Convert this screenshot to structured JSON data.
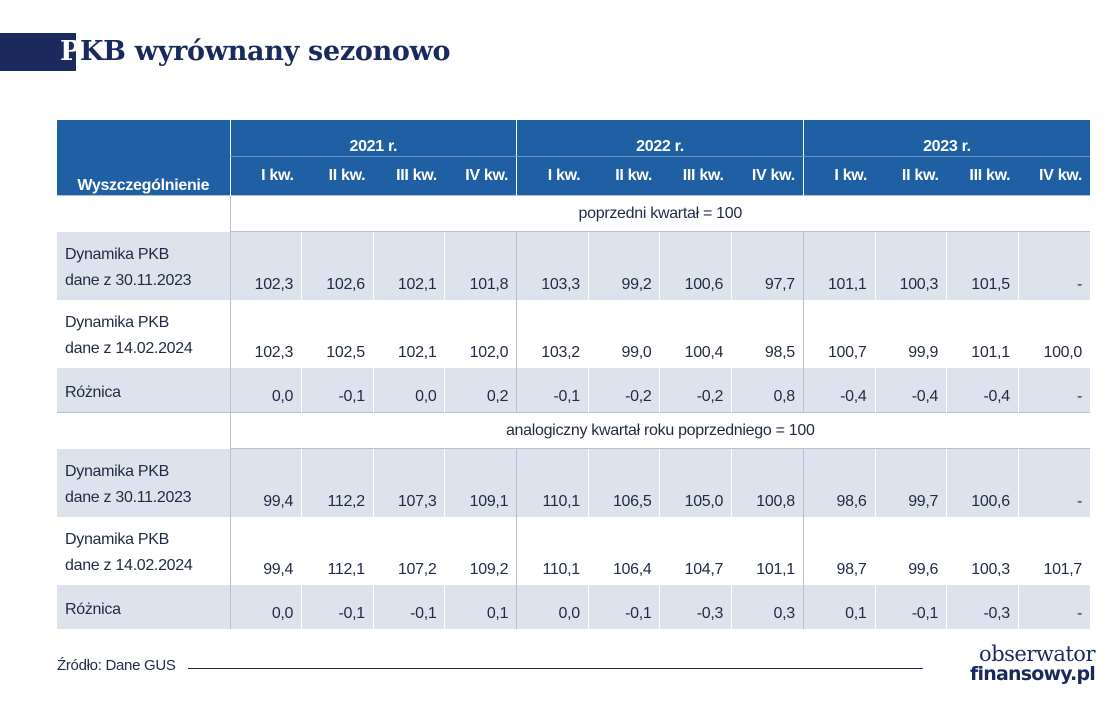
{
  "title": {
    "first_letter": "P",
    "rest": "KB wyrównany sezonowo"
  },
  "chart_data": {
    "type": "table",
    "header_label": "Wyszczególnienie",
    "years": [
      "2021 r.",
      "2022 r.",
      "2023 r."
    ],
    "quarters": [
      "I kw.",
      "II kw.",
      "III kw.",
      "IV kw.",
      "I kw.",
      "II kw.",
      "III kw.",
      "IV kw.",
      "I kw.",
      "II kw.",
      "III kw.",
      "IV kw."
    ],
    "sections": [
      {
        "label": "poprzedni kwartał = 100",
        "rows": [
          {
            "label_line1": "Dynamika PKB",
            "label_line2": "dane z 30.11.2023",
            "values": [
              "102,3",
              "102,6",
              "102,1",
              "101,8",
              "103,3",
              "99,2",
              "100,6",
              "97,7",
              "101,1",
              "100,3",
              "101,5",
              "-"
            ]
          },
          {
            "label_line1": "Dynamika PKB",
            "label_line2": "dane z 14.02.2024",
            "values": [
              "102,3",
              "102,5",
              "102,1",
              "102,0",
              "103,2",
              "99,0",
              "100,4",
              "98,5",
              "100,7",
              "99,9",
              "101,1",
              "100,0"
            ]
          },
          {
            "label_line1": "Różnica",
            "label_line2": "",
            "values": [
              "0,0",
              "-0,1",
              "0,0",
              "0,2",
              "-0,1",
              "-0,2",
              "-0,2",
              "0,8",
              "-0,4",
              "-0,4",
              "-0,4",
              "-"
            ]
          }
        ]
      },
      {
        "label": "analogiczny kwartał roku poprzedniego = 100",
        "rows": [
          {
            "label_line1": "Dynamika PKB",
            "label_line2": "dane z 30.11.2023",
            "values": [
              "99,4",
              "112,2",
              "107,3",
              "109,1",
              "110,1",
              "106,5",
              "105,0",
              "100,8",
              "98,6",
              "99,7",
              "100,6",
              "-"
            ]
          },
          {
            "label_line1": "Dynamika PKB",
            "label_line2": "dane z 14.02.2024",
            "values": [
              "99,4",
              "112,1",
              "107,2",
              "109,2",
              "110,1",
              "106,4",
              "104,7",
              "101,1",
              "98,7",
              "99,6",
              "100,3",
              "101,7"
            ]
          },
          {
            "label_line1": "Różnica",
            "label_line2": "",
            "values": [
              "0,0",
              "-0,1",
              "-0,1",
              "0,1",
              "0,0",
              "-0,1",
              "-0,3",
              "0,3",
              "0,1",
              "-0,1",
              "-0,3",
              "-"
            ]
          }
        ]
      }
    ]
  },
  "footer": {
    "source": "Źródło: Dane GUS",
    "logo_line1": "obserwator",
    "logo_line2": "finansowy.pl"
  },
  "colors": {
    "header_bg": "#1f5fa3",
    "title_navy": "#1a2a5c",
    "row_shade": "#dde3ec"
  }
}
